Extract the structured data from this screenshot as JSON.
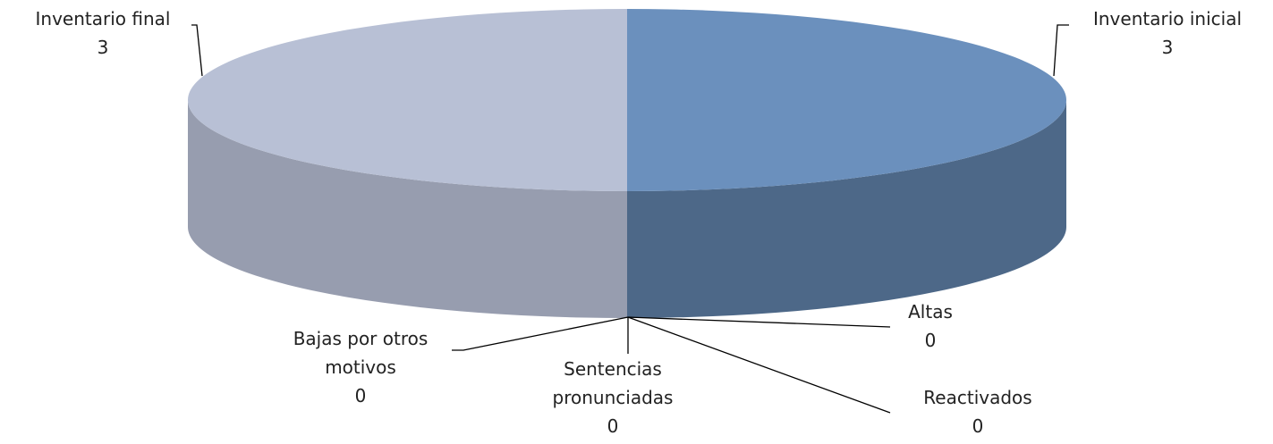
{
  "chart_data": {
    "type": "pie3d",
    "categories": [
      "Inventario inicial",
      "Altas",
      "Reactivados",
      "Sentencias pronunciadas",
      "Bajas por otros motivos",
      "Inventario final"
    ],
    "values": [
      3,
      0,
      0,
      0,
      0,
      3
    ],
    "colors": [
      "#6b90bd",
      "#8fa8cc",
      "#8fa8cc",
      "#8fa8cc",
      "#8fa8cc",
      "#b8c0d5"
    ]
  }
}
